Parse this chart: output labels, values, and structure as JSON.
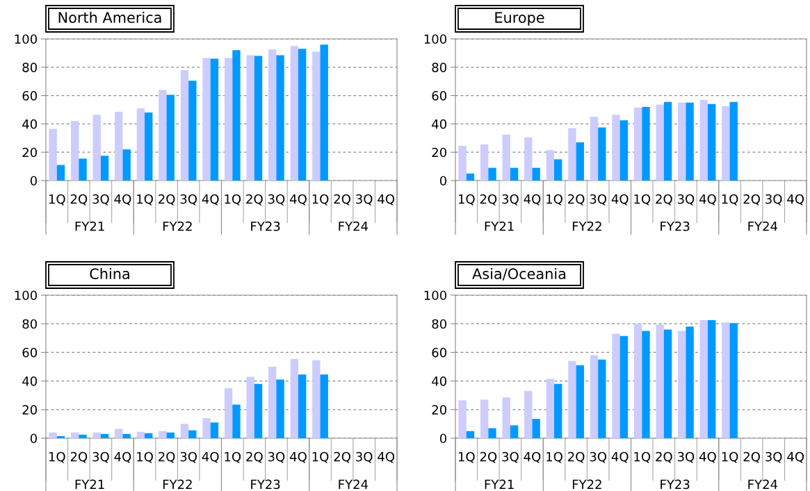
{
  "chart_data": [
    {
      "type": "bar",
      "title": "North America",
      "categories": [
        "1Q",
        "2Q",
        "3Q",
        "4Q",
        "1Q",
        "2Q",
        "3Q",
        "4Q",
        "1Q",
        "2Q",
        "3Q",
        "4Q",
        "1Q",
        "2Q",
        "3Q",
        "4Q"
      ],
      "series": [
        {
          "color": "#ccccff",
          "values": [
            36.5,
            42,
            46.5,
            48.5,
            51,
            64,
            78,
            86.5,
            86.5,
            88.5,
            92.5,
            95,
            91,
            null,
            null,
            null
          ]
        },
        {
          "color": "#0099ff",
          "values": [
            11,
            15.5,
            17.5,
            22,
            48,
            60.5,
            70.5,
            86,
            92,
            88,
            88.5,
            93,
            96,
            null,
            null,
            null
          ]
        }
      ],
      "ylim": [
        0,
        100
      ],
      "yticks": [
        0,
        20,
        40,
        60,
        80,
        100
      ],
      "grid": "y",
      "annotations": [
        "FY21",
        "FY22",
        "FY23",
        "FY24"
      ]
    },
    {
      "type": "bar",
      "title": "Europe",
      "categories": [
        "1Q",
        "2Q",
        "3Q",
        "4Q",
        "1Q",
        "2Q",
        "3Q",
        "4Q",
        "1Q",
        "2Q",
        "3Q",
        "4Q",
        "1Q",
        "2Q",
        "3Q",
        "4Q"
      ],
      "series": [
        {
          "color": "#ccccff",
          "values": [
            24.5,
            25.5,
            32.5,
            30.5,
            21.5,
            37,
            45,
            46.5,
            51.5,
            53.5,
            55,
            57,
            52.5,
            null,
            null,
            null
          ]
        },
        {
          "color": "#0099ff",
          "values": [
            5,
            9,
            9,
            9,
            15,
            27,
            37.5,
            42.5,
            52,
            55.5,
            55,
            54,
            55.5,
            null,
            null,
            null
          ]
        }
      ],
      "ylim": [
        0,
        100
      ],
      "yticks": [
        0,
        20,
        40,
        60,
        80,
        100
      ],
      "grid": "y",
      "annotations": [
        "FY21",
        "FY22",
        "FY23",
        "FY24"
      ]
    },
    {
      "type": "bar",
      "title": "China",
      "categories": [
        "1Q",
        "2Q",
        "3Q",
        "4Q",
        "1Q",
        "2Q",
        "3Q",
        "4Q",
        "1Q",
        "2Q",
        "3Q",
        "4Q",
        "1Q",
        "2Q",
        "3Q",
        "4Q"
      ],
      "series": [
        {
          "color": "#ccccff",
          "values": [
            4,
            4,
            4,
            6.5,
            4.5,
            5,
            10,
            14,
            35,
            43,
            50,
            55.5,
            54.5,
            null,
            null,
            null
          ]
        },
        {
          "color": "#0099ff",
          "values": [
            1.5,
            2.5,
            3,
            3,
            3.5,
            4,
            5.5,
            11,
            23.5,
            38,
            41,
            44.5,
            44.5,
            null,
            null,
            null
          ]
        }
      ],
      "ylim": [
        0,
        100
      ],
      "yticks": [
        0,
        20,
        40,
        60,
        80,
        100
      ],
      "grid": "y",
      "annotations": [
        "FY21",
        "FY22",
        "FY23",
        "FY24"
      ]
    },
    {
      "type": "bar",
      "title": "Asia/Oceania",
      "categories": [
        "1Q",
        "2Q",
        "3Q",
        "4Q",
        "1Q",
        "2Q",
        "3Q",
        "4Q",
        "1Q",
        "2Q",
        "3Q",
        "4Q",
        "1Q",
        "2Q",
        "3Q",
        "4Q"
      ],
      "series": [
        {
          "color": "#ccccff",
          "values": [
            26.5,
            27,
            28.5,
            33,
            41.5,
            54,
            58,
            73,
            80,
            79.5,
            75,
            82.5,
            81,
            null,
            null,
            null
          ]
        },
        {
          "color": "#0099ff",
          "values": [
            5,
            7,
            9,
            13.5,
            38,
            51,
            55,
            71.5,
            75,
            76,
            78,
            82.5,
            80.5,
            null,
            null,
            null
          ]
        }
      ],
      "ylim": [
        0,
        100
      ],
      "yticks": [
        0,
        20,
        40,
        60,
        80,
        100
      ],
      "grid": "y",
      "annotations": [
        "FY21",
        "FY22",
        "FY23",
        "FY24"
      ]
    }
  ]
}
